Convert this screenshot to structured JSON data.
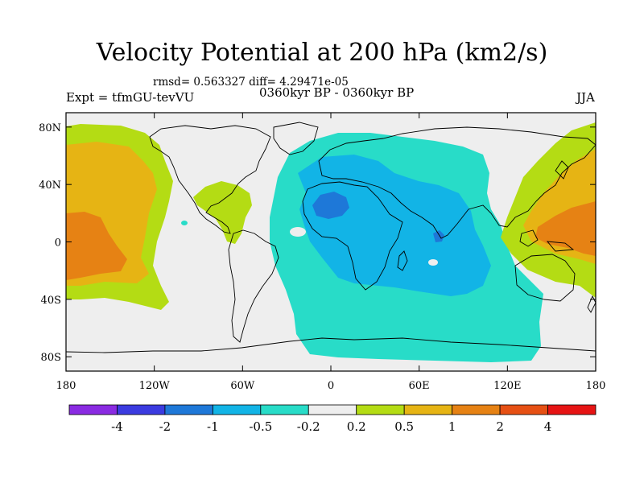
{
  "title": "Velocity Potential at 200 hPa (km2/s)",
  "stats_line": "rmsd= 0.563327  diff= 4.29471e-05",
  "experiment": "Expt = tfmGU-tevVU",
  "period": "0360kyr BP - 0360kyr BP",
  "season": "JJA",
  "map": {
    "projection": "cylindrical equidistant",
    "lon_range": [
      -180,
      180
    ],
    "lat_range": [
      -90,
      90
    ],
    "coastlines": true,
    "lon_ticks": [
      {
        "value": -180,
        "label": "180"
      },
      {
        "value": -120,
        "label": "120W"
      },
      {
        "value": -60,
        "label": "60W"
      },
      {
        "value": 0,
        "label": "0"
      },
      {
        "value": 60,
        "label": "60E"
      },
      {
        "value": 120,
        "label": "120E"
      },
      {
        "value": 180,
        "label": "180"
      }
    ],
    "lat_ticks": [
      {
        "value": 80,
        "label": "80N"
      },
      {
        "value": 40,
        "label": "40N"
      },
      {
        "value": 0,
        "label": "0"
      },
      {
        "value": -40,
        "label": "40S"
      },
      {
        "value": -80,
        "label": "80S"
      }
    ]
  },
  "colorbar": {
    "colors": [
      "#8a2be2",
      "#3b3be0",
      "#1e78d8",
      "#12b4e6",
      "#28dcc8",
      "#eeeeee",
      "#b4dc14",
      "#e6b414",
      "#e68214",
      "#e65014",
      "#e61414"
    ],
    "labels": [
      "-4",
      "-2",
      "-1",
      "-0.5",
      "-0.2",
      "0.2",
      "0.5",
      "1",
      "2",
      "4"
    ]
  }
}
